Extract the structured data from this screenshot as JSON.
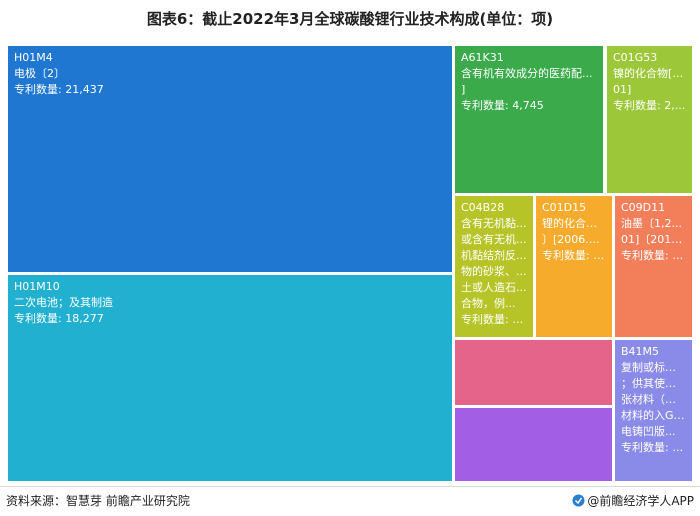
{
  "title": "图表6：截止2022年3月全球碳酸锂行业技术构成(单位：项)",
  "footer": {
    "source": "资料来源：智慧芽 前瞻产业研究院",
    "brand": "@前瞻经济学人APP",
    "brand_icon": "brand-logo-icon"
  },
  "chart_data": {
    "type": "treemap",
    "value_label": "专利数量",
    "items": [
      {
        "code": "H01M4",
        "desc": [
          "电极〔2〕"
        ],
        "value_text": "21,437",
        "value": 21437,
        "color": "#1f77d2"
      },
      {
        "code": "H01M10",
        "desc": [
          "二次电池；及其制造"
        ],
        "value_text": "18,277",
        "value": 18277,
        "color": "#21b0d0"
      },
      {
        "code": "A61K31",
        "desc": [
          "含有机有效成分的医药配...",
          "]"
        ],
        "value_text": "4,745",
        "value": 4745,
        "color": "#3aaa4b"
      },
      {
        "code": "C01G53",
        "desc": [
          "镍的化合物[2...",
          "01]"
        ],
        "value_text": "2,...",
        "color": "#9cc739"
      },
      {
        "code": "C04B28",
        "desc": [
          "含有无机黏...",
          "或含有无机...",
          "机黏结剂反...",
          "物的砂浆、...",
          "土或人造石...",
          "合物，例..."
        ],
        "value_text": "2...",
        "color": "#b7c428"
      },
      {
        "code": "C01D15",
        "desc": [
          "锂的化合物...",
          "〕[2006.01]"
        ],
        "value_text": "2...",
        "color": "#f6ab2c"
      },
      {
        "code": "C09D11",
        "desc": [
          "油墨〔1,2...",
          "01]〔2014...."
        ],
        "value_text": "2...",
        "color": "#f37f5a"
      },
      {
        "code": "",
        "desc": [],
        "value_text": "",
        "color": "#e4648a"
      },
      {
        "code": "",
        "desc": [],
        "value_text": "",
        "color": "#a35ee6"
      },
      {
        "code": "B41M5",
        "desc": [
          "复制或标记...",
          "；供其使用...",
          "张材料（用...",
          "材料的入G0...",
          "电铸凹版..."
        ],
        "value_text": "2...",
        "color": "#8a8ae8"
      }
    ]
  }
}
